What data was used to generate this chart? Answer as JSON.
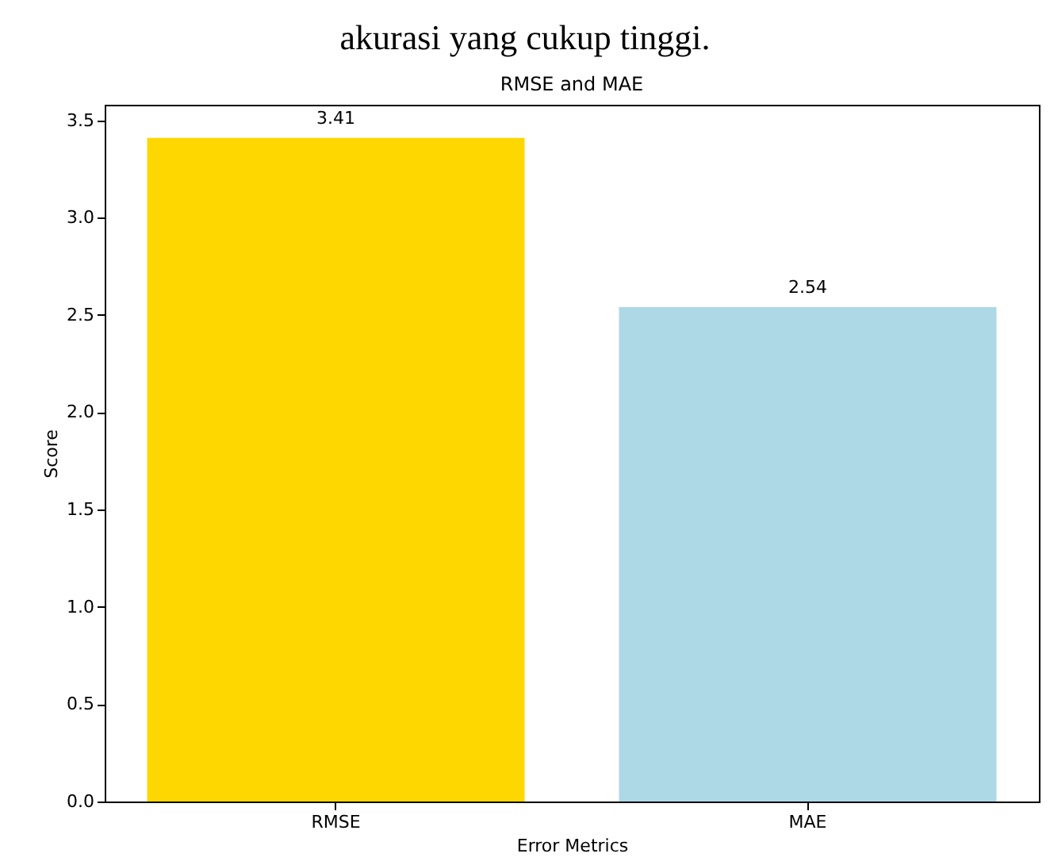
{
  "chart_data": {
    "type": "bar",
    "title": "RMSE and MAE",
    "xlabel": "Error Metrics",
    "ylabel": "Score",
    "annotations": [
      "akurasi yang cukup tinggi."
    ],
    "categories": [
      "RMSE",
      "MAE"
    ],
    "values": [
      3.41,
      2.54
    ],
    "colors": [
      "#ffd700",
      "#add8e6"
    ],
    "ylim": [
      0,
      3.58
    ],
    "yticks": [
      {
        "value": 0,
        "label": "0.0"
      },
      0.5,
      {
        "value": 1,
        "label": "1.0"
      },
      1.5,
      {
        "value": 2,
        "label": "2.0"
      },
      2.5,
      {
        "value": 3,
        "label": "3.0"
      },
      3.5
    ],
    "data_labels": true,
    "grid": false,
    "legend": false
  }
}
